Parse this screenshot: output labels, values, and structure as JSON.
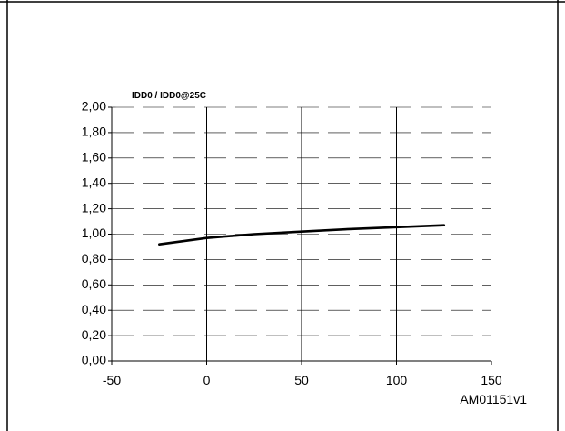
{
  "chart_data": {
    "type": "line",
    "title": "IDD0 / IDD0@25C",
    "xlabel": "",
    "ylabel": "",
    "xlim": [
      -50,
      150
    ],
    "ylim": [
      0,
      2.0
    ],
    "x_ticks": [
      -50,
      0,
      50,
      100,
      150
    ],
    "x_tick_labels": [
      "-50",
      "0",
      "50",
      "100",
      "150"
    ],
    "y_ticks": [
      0,
      0.2,
      0.4,
      0.6,
      0.8,
      1.0,
      1.2,
      1.4,
      1.6,
      1.8,
      2.0
    ],
    "y_tick_labels": [
      "0,00",
      "0,20",
      "0,40",
      "0,60",
      "0,80",
      "1,00",
      "1,20",
      "1,40",
      "1,60",
      "1,80",
      "2,00"
    ],
    "grid": "vertical solid lines, horizontal dashed lines",
    "series": [
      {
        "x": [
          -25,
          0,
          25,
          50,
          75,
          100,
          125
        ],
        "y": [
          0.92,
          0.97,
          1.0,
          1.02,
          1.04,
          1.055,
          1.07
        ]
      }
    ]
  },
  "figure_id": "AM01151v1",
  "colors": {
    "line": "#000000",
    "grid": "#000000",
    "frame": "#000000"
  }
}
